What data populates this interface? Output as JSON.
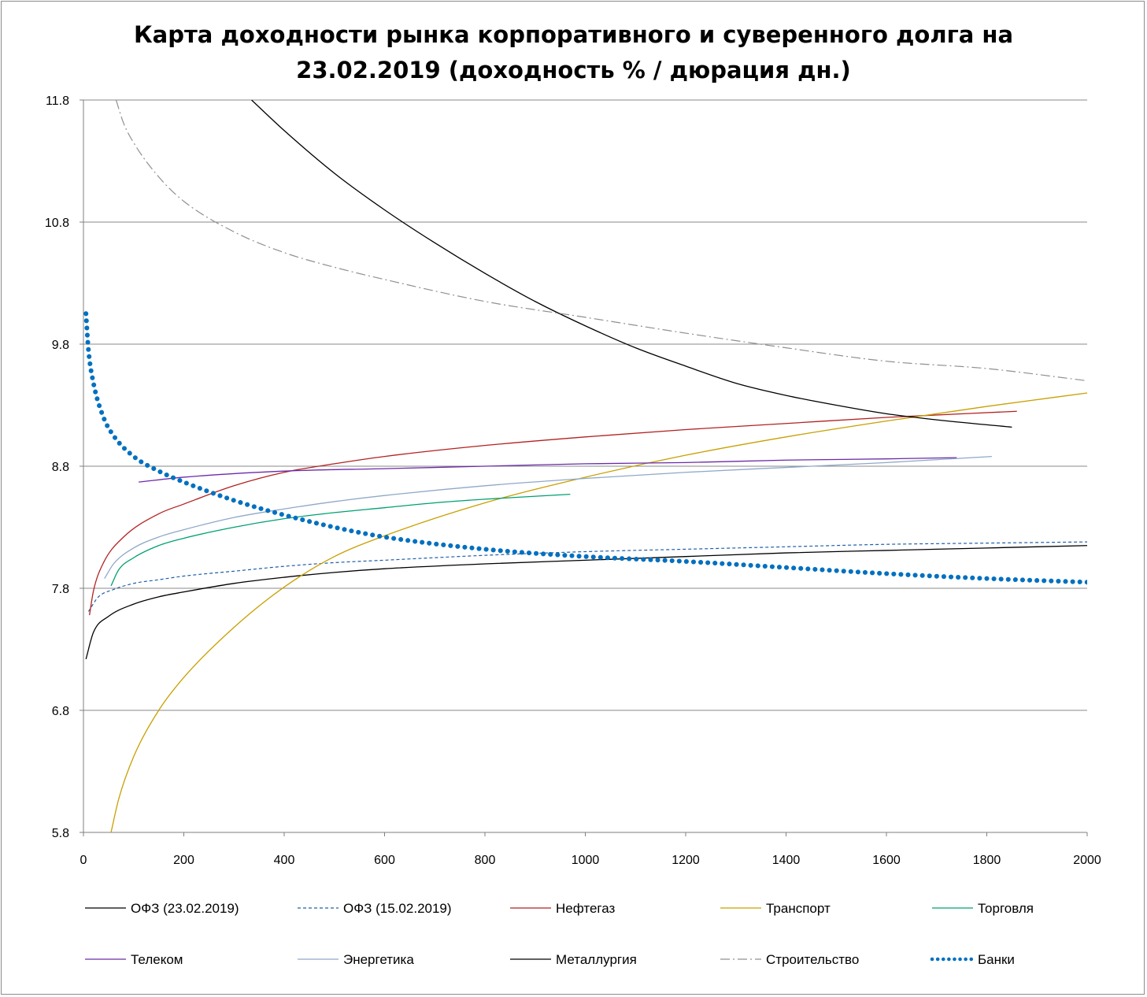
{
  "chart_data": {
    "type": "line",
    "title_line1": "Карта доходности рынка корпоративного и суверенного долга на",
    "title_line2": "23.02.2019 (доходность % / дюрация дн.)",
    "xlim": [
      0,
      2000
    ],
    "ylim": [
      5.8,
      11.8
    ],
    "x_ticks": [
      "0",
      "200",
      "400",
      "600",
      "800",
      "1000",
      "1200",
      "1400",
      "1600",
      "1800",
      "2000"
    ],
    "x_tick_values": [
      0,
      200,
      400,
      600,
      800,
      1000,
      1200,
      1400,
      1600,
      1800,
      2000
    ],
    "y_ticks": [
      "11.8",
      "10.8",
      "9.8",
      "8.8",
      "7.8",
      "6.8",
      "5.8"
    ],
    "y_tick_values": [
      11.8,
      10.8,
      9.8,
      8.8,
      7.8,
      6.8,
      5.8
    ],
    "grid": "horizontal",
    "legend_position": "bottom",
    "series": [
      {
        "name": "ОФЗ (23.02.2019)",
        "color": "#000000",
        "dash": "solid",
        "x": [
          5,
          20,
          50,
          100,
          150,
          200,
          300,
          400,
          500,
          600,
          800,
          1000,
          1200,
          1400,
          1600,
          1800,
          2000
        ],
        "y": [
          7.22,
          7.44,
          7.57,
          7.67,
          7.73,
          7.77,
          7.84,
          7.89,
          7.93,
          7.96,
          8.0,
          8.03,
          8.06,
          8.09,
          8.11,
          8.13,
          8.15
        ]
      },
      {
        "name": "ОФЗ (15.02.2019)",
        "color": "#1f5fa8",
        "dash": "dash",
        "x": [
          10,
          30,
          60,
          100,
          150,
          200,
          300,
          400,
          500,
          600,
          800,
          1000,
          1200,
          1400,
          1600,
          1800,
          2000
        ],
        "y": [
          7.61,
          7.73,
          7.79,
          7.84,
          7.87,
          7.9,
          7.94,
          7.98,
          8.01,
          8.03,
          8.07,
          8.1,
          8.12,
          8.14,
          8.16,
          8.17,
          8.18
        ]
      },
      {
        "name": "Нефтегаз",
        "color": "#b22222",
        "dash": "solid",
        "x": [
          12,
          20,
          40,
          80,
          150,
          200,
          300,
          400,
          500,
          600,
          800,
          1000,
          1200,
          1400,
          1600,
          1860
        ],
        "y": [
          7.58,
          7.78,
          8.01,
          8.22,
          8.41,
          8.49,
          8.64,
          8.75,
          8.82,
          8.88,
          8.97,
          9.04,
          9.1,
          9.15,
          9.2,
          9.25
        ]
      },
      {
        "name": "Транспорт",
        "color": "#c8a000",
        "dash": "solid",
        "x": [
          55,
          70,
          100,
          150,
          200,
          300,
          400,
          500,
          600,
          800,
          1000,
          1200,
          1400,
          1600,
          1800,
          2000
        ],
        "y": [
          5.8,
          6.07,
          6.42,
          6.8,
          7.07,
          7.48,
          7.81,
          8.06,
          8.23,
          8.5,
          8.71,
          8.89,
          9.04,
          9.17,
          9.29,
          9.4
        ]
      },
      {
        "name": "Торговля",
        "color": "#00a070",
        "dash": "solid",
        "x": [
          55,
          70,
          100,
          150,
          200,
          300,
          400,
          500,
          600,
          700,
          800,
          970
        ],
        "y": [
          7.82,
          7.95,
          8.05,
          8.15,
          8.21,
          8.3,
          8.37,
          8.42,
          8.46,
          8.5,
          8.53,
          8.57
        ]
      },
      {
        "name": "Телеком",
        "color": "#6a2ca8",
        "dash": "solid",
        "x": [
          110,
          200,
          400,
          600,
          800,
          1000,
          1200,
          1400,
          1600,
          1740
        ],
        "y": [
          8.67,
          8.71,
          8.76,
          8.78,
          8.8,
          8.82,
          8.83,
          8.85,
          8.86,
          8.87
        ]
      },
      {
        "name": "Энергетика",
        "color": "#8fa8c8",
        "dash": "solid",
        "x": [
          42,
          60,
          100,
          150,
          200,
          300,
          400,
          500,
          600,
          800,
          1000,
          1200,
          1400,
          1600,
          1810
        ],
        "y": [
          7.88,
          8.0,
          8.13,
          8.22,
          8.28,
          8.38,
          8.45,
          8.51,
          8.56,
          8.64,
          8.7,
          8.75,
          8.79,
          8.83,
          8.88
        ]
      },
      {
        "name": "Металлургия",
        "color": "#000000",
        "dash": "solid",
        "x": [
          335,
          400,
          500,
          600,
          700,
          800,
          900,
          1000,
          1100,
          1200,
          1300,
          1400,
          1500,
          1600,
          1700,
          1850
        ],
        "y": [
          11.8,
          11.55,
          11.2,
          10.9,
          10.63,
          10.38,
          10.15,
          9.95,
          9.77,
          9.62,
          9.48,
          9.38,
          9.3,
          9.23,
          9.18,
          9.12
        ]
      },
      {
        "name": "Строительство",
        "color": "#909090",
        "dash": "dashdot",
        "x": [
          65,
          80,
          100,
          150,
          200,
          300,
          400,
          500,
          600,
          800,
          1000,
          1200,
          1400,
          1600,
          1800,
          2000
        ],
        "y": [
          11.8,
          11.61,
          11.45,
          11.17,
          10.97,
          10.72,
          10.55,
          10.43,
          10.33,
          10.15,
          10.02,
          9.89,
          9.77,
          9.66,
          9.6,
          9.5
        ]
      },
      {
        "name": "Банки",
        "color": "#0070c0",
        "dash": "dotted",
        "x": [
          5,
          10,
          20,
          40,
          60,
          100,
          150,
          200,
          300,
          400,
          500,
          600,
          800,
          1000,
          1200,
          1400,
          1600,
          1800,
          2000
        ],
        "y": [
          10.05,
          9.75,
          9.48,
          9.2,
          9.05,
          8.88,
          8.76,
          8.67,
          8.52,
          8.4,
          8.3,
          8.22,
          8.12,
          8.06,
          8.02,
          7.97,
          7.92,
          7.88,
          7.85
        ]
      }
    ]
  }
}
